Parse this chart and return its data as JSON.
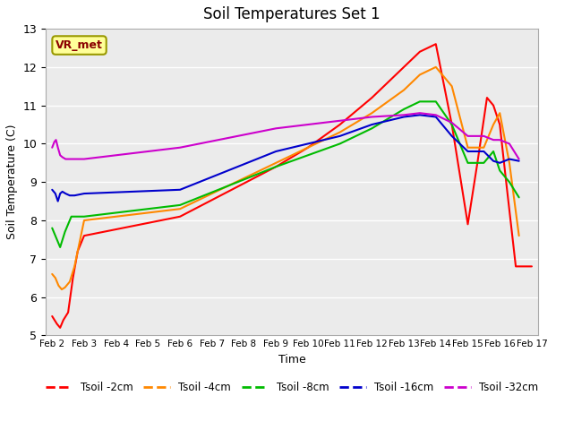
{
  "title": "Soil Temperatures Set 1",
  "xlabel": "Time",
  "ylabel": "Soil Temperature (C)",
  "ylim": [
    5.0,
    13.0
  ],
  "yticks": [
    5.0,
    6.0,
    7.0,
    8.0,
    9.0,
    10.0,
    11.0,
    12.0,
    13.0
  ],
  "plot_bg_color": "#ebebeb",
  "fig_bg_color": "#ffffff",
  "annotation_label": "VR_met",
  "annotation_box_color": "#ffff99",
  "annotation_text_color": "#8B0000",
  "annotation_edge_color": "#999900",
  "series": {
    "Tsoil -2cm": {
      "color": "#ff0000",
      "x": [
        2.0,
        2.15,
        2.25,
        2.35,
        2.5,
        2.65,
        2.8,
        3.0,
        6.0,
        9.0,
        10.0,
        11.0,
        12.0,
        13.0,
        13.5,
        14.0,
        14.5,
        15.0,
        15.3,
        15.6,
        15.8,
        16.0,
        16.2,
        16.5,
        17.0
      ],
      "y": [
        5.5,
        5.3,
        5.2,
        5.4,
        5.6,
        6.5,
        7.2,
        7.6,
        8.1,
        9.4,
        9.9,
        10.5,
        11.2,
        12.0,
        12.4,
        12.6,
        10.5,
        7.9,
        9.5,
        11.2,
        11.0,
        10.5,
        9.0,
        6.8,
        6.8
      ]
    },
    "Tsoil -4cm": {
      "color": "#ff8800",
      "x": [
        2.0,
        2.1,
        2.2,
        2.3,
        2.4,
        2.55,
        2.7,
        3.0,
        6.0,
        9.0,
        10.0,
        11.0,
        12.0,
        13.0,
        13.5,
        14.0,
        14.5,
        15.0,
        15.5,
        15.8,
        16.0,
        16.3,
        16.6
      ],
      "y": [
        6.6,
        6.5,
        6.3,
        6.2,
        6.25,
        6.4,
        6.8,
        8.0,
        8.3,
        9.5,
        9.9,
        10.3,
        10.8,
        11.4,
        11.8,
        12.0,
        11.5,
        9.9,
        9.9,
        10.5,
        10.8,
        9.5,
        7.6
      ]
    },
    "Tsoil -8cm": {
      "color": "#00bb00",
      "x": [
        2.0,
        2.15,
        2.25,
        2.4,
        2.6,
        3.0,
        6.0,
        9.0,
        10.0,
        11.0,
        12.0,
        13.0,
        13.5,
        14.0,
        14.5,
        15.0,
        15.5,
        15.8,
        16.0,
        16.3,
        16.6
      ],
      "y": [
        7.8,
        7.5,
        7.3,
        7.7,
        8.1,
        8.1,
        8.4,
        9.4,
        9.7,
        10.0,
        10.4,
        10.9,
        11.1,
        11.1,
        10.5,
        9.5,
        9.5,
        9.8,
        9.3,
        9.0,
        8.6
      ]
    },
    "Tsoil -16cm": {
      "color": "#0000cc",
      "x": [
        2.0,
        2.1,
        2.18,
        2.25,
        2.32,
        2.42,
        2.55,
        2.7,
        3.0,
        6.0,
        9.0,
        10.0,
        11.0,
        12.0,
        13.0,
        13.5,
        14.0,
        14.5,
        15.0,
        15.5,
        15.8,
        16.0,
        16.3,
        16.6
      ],
      "y": [
        8.8,
        8.7,
        8.5,
        8.7,
        8.75,
        8.7,
        8.65,
        8.65,
        8.7,
        8.8,
        9.8,
        10.0,
        10.2,
        10.5,
        10.7,
        10.75,
        10.7,
        10.2,
        9.8,
        9.8,
        9.55,
        9.5,
        9.6,
        9.55
      ]
    },
    "Tsoil -32cm": {
      "color": "#cc00cc",
      "x": [
        2.0,
        2.07,
        2.12,
        2.18,
        2.25,
        2.32,
        2.42,
        2.55,
        3.0,
        6.0,
        9.0,
        10.0,
        11.0,
        12.0,
        13.0,
        13.5,
        14.0,
        14.5,
        15.0,
        15.5,
        15.8,
        16.0,
        16.3,
        16.6
      ],
      "y": [
        9.9,
        10.05,
        10.1,
        9.9,
        9.7,
        9.65,
        9.6,
        9.6,
        9.6,
        9.9,
        10.4,
        10.5,
        10.6,
        10.7,
        10.75,
        10.8,
        10.75,
        10.55,
        10.2,
        10.2,
        10.1,
        10.1,
        10.0,
        9.6
      ]
    }
  },
  "xtick_positions": [
    2,
    3,
    4,
    5,
    6,
    7,
    8,
    9,
    10,
    11,
    12,
    13,
    14,
    15,
    16,
    17
  ],
  "xtick_labels": [
    "Feb 2",
    "Feb 3",
    "Feb 4",
    "Feb 5",
    "Feb 6",
    "Feb 7",
    "Feb 8",
    "Feb 9",
    "Feb 10",
    "Feb 11",
    "Feb 12",
    "Feb 13",
    "Feb 14",
    "Feb 15",
    "Feb 16",
    "Feb 17"
  ],
  "xlim": [
    1.8,
    17.2
  ],
  "legend_order": [
    "Tsoil -2cm",
    "Tsoil -4cm",
    "Tsoil -8cm",
    "Tsoil -16cm",
    "Tsoil -32cm"
  ]
}
